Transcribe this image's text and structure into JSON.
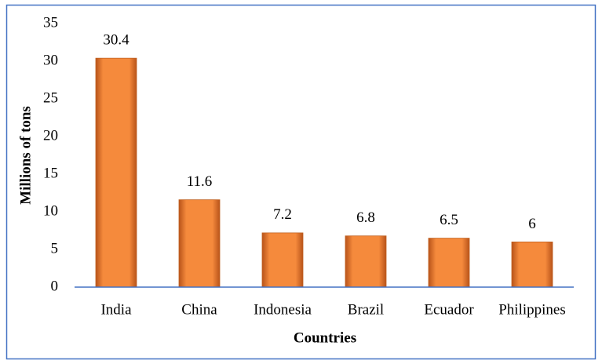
{
  "chart_data": {
    "type": "bar",
    "x_label": "Countries",
    "y_label": "Millions of tons",
    "categories": [
      "India",
      "China",
      "Indonesia",
      "Brazil",
      "Ecuador",
      "Philippines"
    ],
    "values": [
      30.4,
      11.6,
      7.2,
      6.8,
      6.5,
      6
    ],
    "color": "#f58a3c",
    "ylim": [
      0,
      35
    ],
    "yticks": [
      0,
      5,
      10,
      15,
      20,
      25,
      30,
      35
    ],
    "grid": false
  }
}
